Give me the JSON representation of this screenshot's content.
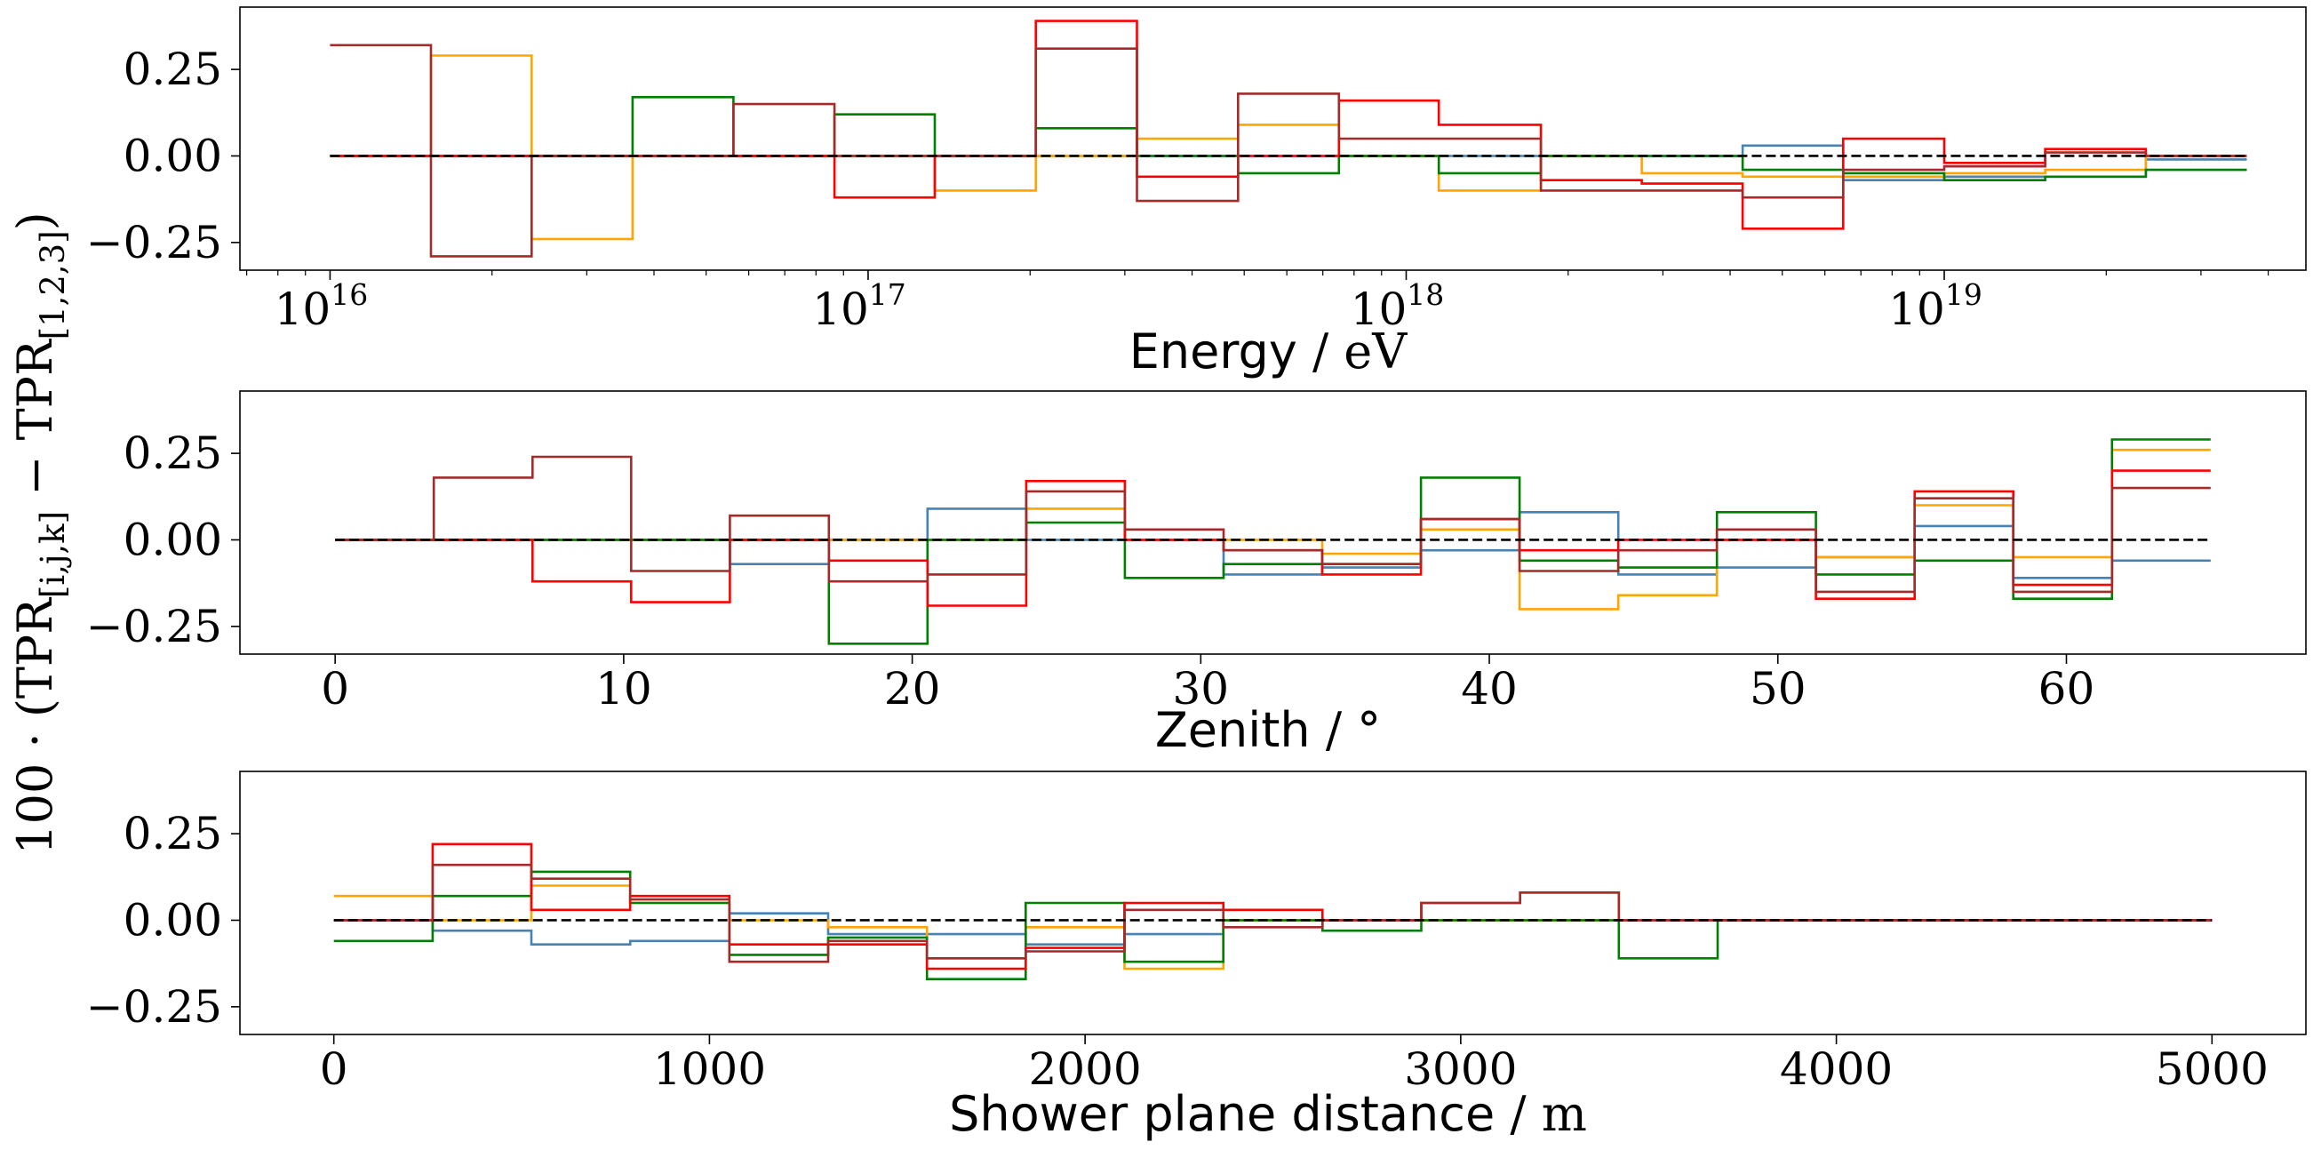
{
  "ylabel": "100 · (TPR[i,j,k] − TPR[1,2,3])",
  "ylabel_parts": {
    "prefix": "100 · (TPR",
    "sub1": "[i,j,k]",
    "mid": " − TPR",
    "sub2": "[1,2,3]",
    "suffix": ")"
  },
  "chart_data": [
    {
      "type": "line",
      "step": "post",
      "xscale": "log",
      "xlabel": "Energy / eV",
      "xlabel_parts": {
        "word": "Energy",
        "unit": " / eV"
      },
      "xlim": [
        6800000000000000.0,
        4.7e+19
      ],
      "ylim": [
        -0.33,
        0.43
      ],
      "yticks": [
        "0.25",
        "0.00",
        "−0.25"
      ],
      "ytick_values": [
        0.25,
        0.0,
        -0.25
      ],
      "xticks": [
        {
          "base": "10",
          "exp": "16",
          "value": 1e+16
        },
        {
          "base": "10",
          "exp": "17",
          "value": 1e+17
        },
        {
          "base": "10",
          "exp": "18",
          "value": 1e+18
        },
        {
          "base": "10",
          "exp": "19",
          "value": 1e+19
        }
      ],
      "hline": 0,
      "bin_edges": [
        1e+16,
        1.54e+16,
        2.37e+16,
        3.65e+16,
        5.62e+16,
        8.66e+16,
        1.33e+17,
        2.05e+17,
        3.16e+17,
        4.87e+17,
        7.5e+17,
        1.15e+18,
        1.78e+18,
        2.74e+18,
        4.22e+18,
        6.49e+18,
        1e+19,
        1.54e+19,
        2.37e+19,
        3.65e+19
      ],
      "series": [
        {
          "color": "#4682b4",
          "values": [
            0,
            0,
            0,
            0,
            0,
            0,
            0,
            0,
            0,
            0,
            0,
            0,
            0,
            0,
            0.03,
            -0.07,
            -0.06,
            -0.06,
            -0.01
          ]
        },
        {
          "color": "#ffa500",
          "values": [
            0,
            0.29,
            -0.24,
            0,
            0,
            0,
            -0.1,
            0,
            0.05,
            0.09,
            0,
            -0.1,
            0,
            -0.05,
            -0.06,
            -0.06,
            -0.05,
            -0.04,
            0
          ]
        },
        {
          "color": "#008000",
          "values": [
            0,
            0,
            0,
            0.17,
            0,
            0.12,
            0,
            0.08,
            0,
            -0.05,
            0,
            -0.05,
            0,
            0,
            -0.04,
            -0.05,
            -0.07,
            -0.06,
            -0.04
          ]
        },
        {
          "color": "#ff0000",
          "values": [
            0,
            0,
            0,
            0,
            0,
            -0.12,
            0,
            0.39,
            -0.06,
            0,
            0.16,
            0.09,
            -0.07,
            -0.08,
            -0.21,
            0.05,
            -0.02,
            0.02,
            0
          ]
        },
        {
          "color": "#a52a2a",
          "values": [
            0.32,
            -0.29,
            0,
            0,
            0.15,
            0,
            0,
            0.31,
            -0.13,
            0.18,
            0.05,
            0.05,
            -0.1,
            -0.1,
            -0.12,
            -0.04,
            -0.03,
            0.01,
            0
          ]
        }
      ]
    },
    {
      "type": "line",
      "step": "post",
      "xscale": "linear",
      "xlabel": "Zenith / °",
      "xlabel_parts": {
        "word": "Zenith",
        "unit": " / °"
      },
      "xlim": [
        -3.3,
        68.3
      ],
      "ylim": [
        -0.33,
        0.43
      ],
      "yticks": [
        "0.25",
        "0.00",
        "−0.25"
      ],
      "ytick_values": [
        0.25,
        0.0,
        -0.25
      ],
      "xticks": [
        "0",
        "10",
        "20",
        "30",
        "40",
        "50",
        "60"
      ],
      "xtick_values": [
        0,
        10,
        20,
        30,
        40,
        50,
        60
      ],
      "hline": 0,
      "bin_edges": [
        0,
        3.42,
        6.84,
        10.26,
        13.68,
        17.11,
        20.53,
        23.95,
        27.37,
        30.79,
        34.21,
        37.63,
        41.05,
        44.47,
        47.89,
        51.32,
        54.74,
        58.16,
        61.58,
        65
      ],
      "series": [
        {
          "color": "#4682b4",
          "values": [
            0,
            0,
            0,
            0,
            -0.07,
            0,
            0.09,
            0,
            0,
            -0.1,
            -0.08,
            -0.03,
            0.08,
            -0.1,
            -0.08,
            -0.05,
            0.04,
            -0.11,
            -0.06
          ]
        },
        {
          "color": "#ffa500",
          "values": [
            0,
            0,
            0,
            0,
            0,
            0,
            0,
            0.09,
            0,
            0,
            -0.04,
            0.03,
            -0.2,
            -0.16,
            0,
            -0.05,
            0.1,
            -0.05,
            0.26
          ]
        },
        {
          "color": "#008000",
          "values": [
            0,
            0,
            0,
            0,
            0,
            -0.3,
            0,
            0.05,
            -0.11,
            -0.07,
            -0.07,
            0.18,
            -0.06,
            -0.08,
            0.08,
            -0.1,
            -0.06,
            -0.17,
            0.29
          ]
        },
        {
          "color": "#ff0000",
          "values": [
            0,
            0,
            -0.12,
            -0.18,
            0,
            -0.06,
            -0.19,
            0.17,
            0,
            -0.03,
            -0.1,
            0.06,
            -0.03,
            0,
            0,
            -0.17,
            0.14,
            -0.13,
            0.2
          ]
        },
        {
          "color": "#a52a2a",
          "values": [
            0,
            0.18,
            0.24,
            -0.09,
            0.07,
            -0.12,
            -0.1,
            0.14,
            0.03,
            -0.03,
            -0.07,
            0.06,
            -0.09,
            -0.03,
            0.03,
            -0.15,
            0.12,
            -0.15,
            0.15
          ]
        }
      ]
    },
    {
      "type": "line",
      "step": "post",
      "xscale": "linear",
      "xlabel": "Shower plane distance / m",
      "xlabel_parts": {
        "word": "Shower plane distance",
        "unit": " / m"
      },
      "xlim": [
        -250,
        5250
      ],
      "ylim": [
        -0.33,
        0.43
      ],
      "yticks": [
        "0.25",
        "0.00",
        "−0.25"
      ],
      "ytick_values": [
        0.25,
        0.0,
        -0.25
      ],
      "xticks": [
        "0",
        "1000",
        "2000",
        "3000",
        "4000",
        "5000"
      ],
      "xtick_values": [
        0,
        1000,
        2000,
        3000,
        4000,
        5000
      ],
      "hline": 0,
      "bin_edges": [
        0,
        263,
        526,
        789,
        1053,
        1316,
        1579,
        1842,
        2105,
        2368,
        2632,
        2895,
        3158,
        3421,
        3684,
        3947,
        4211,
        4474,
        4737,
        5000
      ],
      "series": [
        {
          "color": "#4682b4",
          "values": [
            0,
            -0.03,
            -0.07,
            -0.06,
            0.02,
            -0.04,
            -0.04,
            -0.07,
            -0.04,
            0,
            0,
            0,
            0,
            0,
            0,
            0,
            0,
            0,
            0
          ]
        },
        {
          "color": "#ffa500",
          "values": [
            0.07,
            0,
            0.1,
            0.05,
            0,
            -0.02,
            -0.11,
            -0.02,
            -0.14,
            0,
            0,
            0,
            0,
            0,
            0,
            0,
            0,
            0,
            0
          ]
        },
        {
          "color": "#008000",
          "values": [
            -0.06,
            0.07,
            0.14,
            0.05,
            -0.1,
            -0.05,
            -0.17,
            0.05,
            -0.12,
            0,
            -0.03,
            0,
            0,
            -0.11,
            0,
            0,
            0,
            0,
            0
          ]
        },
        {
          "color": "#ff0000",
          "values": [
            0,
            0.22,
            0.03,
            0.07,
            -0.07,
            -0.07,
            -0.14,
            -0.08,
            0.05,
            0.03,
            0,
            0.05,
            0.08,
            0,
            0,
            0,
            0,
            0,
            0
          ]
        },
        {
          "color": "#a52a2a",
          "values": [
            0,
            0.16,
            0.12,
            0.06,
            -0.12,
            -0.06,
            -0.11,
            -0.09,
            0.03,
            -0.02,
            0,
            0.05,
            0.08,
            0,
            0,
            0,
            0,
            0,
            0
          ]
        }
      ]
    }
  ]
}
